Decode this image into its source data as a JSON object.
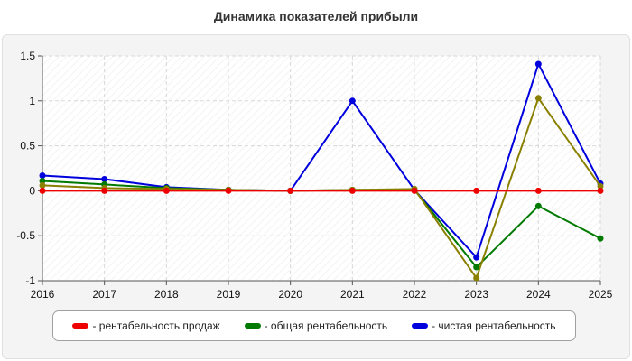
{
  "chart_data": {
    "type": "line",
    "title": "Динамика показателей прибыли",
    "xlabel": "",
    "ylabel": "",
    "x": [
      2016,
      2017,
      2018,
      2019,
      2020,
      2021,
      2022,
      2023,
      2024,
      2025
    ],
    "ylim": [
      -1,
      1.5
    ],
    "yticks": [
      "1.5",
      "1",
      "0.5",
      "0",
      "-0.5",
      "-1"
    ],
    "grid": true,
    "legend_position": "bottom",
    "series": [
      {
        "name": "- рентабельность продаж",
        "color": "#ee0000",
        "values": [
          0,
          0,
          0,
          0,
          0,
          0,
          0,
          0,
          0,
          0
        ]
      },
      {
        "name": "- общая рентабельность",
        "color": "#007a00",
        "values": [
          0.11,
          0.07,
          0.03,
          0.01,
          0,
          0.01,
          0.01,
          -0.85,
          -0.17,
          -0.53
        ]
      },
      {
        "name": "- чистая рентабельность",
        "color": "#0000dd",
        "values": [
          0.17,
          0.13,
          0.04,
          0.01,
          0,
          1.0,
          0.01,
          -0.74,
          1.41,
          0.08
        ]
      },
      {
        "name": "",
        "color": "#8a8000",
        "values": [
          0.06,
          0.03,
          0.02,
          0.01,
          0,
          0.01,
          0.02,
          -0.97,
          1.03,
          0.05
        ]
      }
    ]
  }
}
